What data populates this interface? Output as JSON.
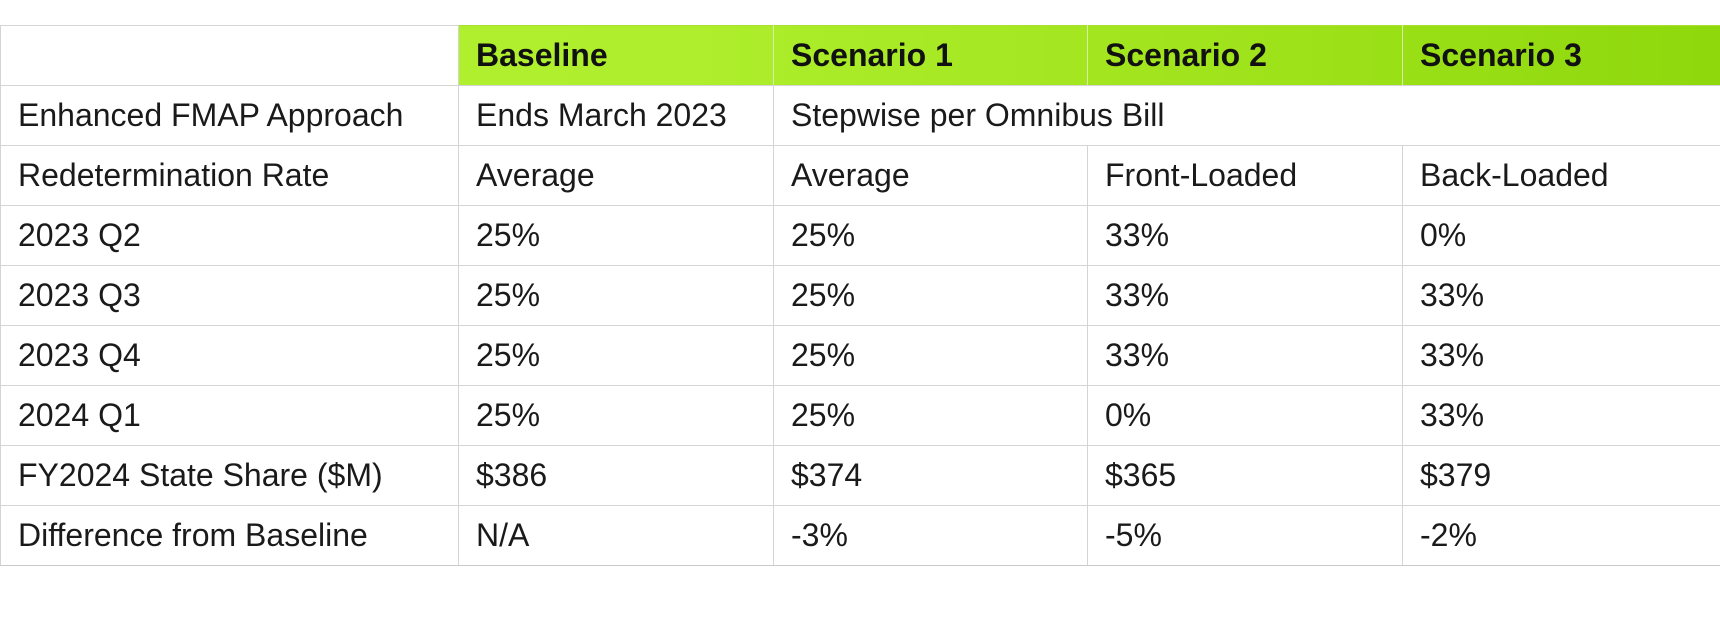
{
  "table": {
    "headers": [
      "",
      "Baseline",
      "Scenario 1",
      "Scenario 2",
      "Scenario 3"
    ],
    "fmap_row": {
      "label": "Enhanced FMAP Approach",
      "baseline": "Ends March 2023",
      "scenarios": "Stepwise per Omnibus Bill"
    },
    "rows": [
      [
        "Redetermination Rate",
        "Average",
        "Average",
        "Front-Loaded",
        "Back-Loaded"
      ],
      [
        "2023 Q2",
        "25%",
        "25%",
        "33%",
        "0%"
      ],
      [
        "2023 Q3",
        "25%",
        "25%",
        "33%",
        "33%"
      ],
      [
        "2023 Q4",
        "25%",
        "25%",
        "33%",
        "33%"
      ],
      [
        "2024 Q1",
        "25%",
        "25%",
        "0%",
        "33%"
      ],
      [
        "FY2024 State Share ($M)",
        "$386",
        "$374",
        "$365",
        "$379"
      ],
      [
        "Difference from Baseline",
        "N/A",
        "-3%",
        "-5%",
        "-2%"
      ]
    ]
  },
  "colors": {
    "header_green_start": "#b2f233",
    "header_green_end": "#8ed80c",
    "grid_line": "#d4d4d4"
  }
}
